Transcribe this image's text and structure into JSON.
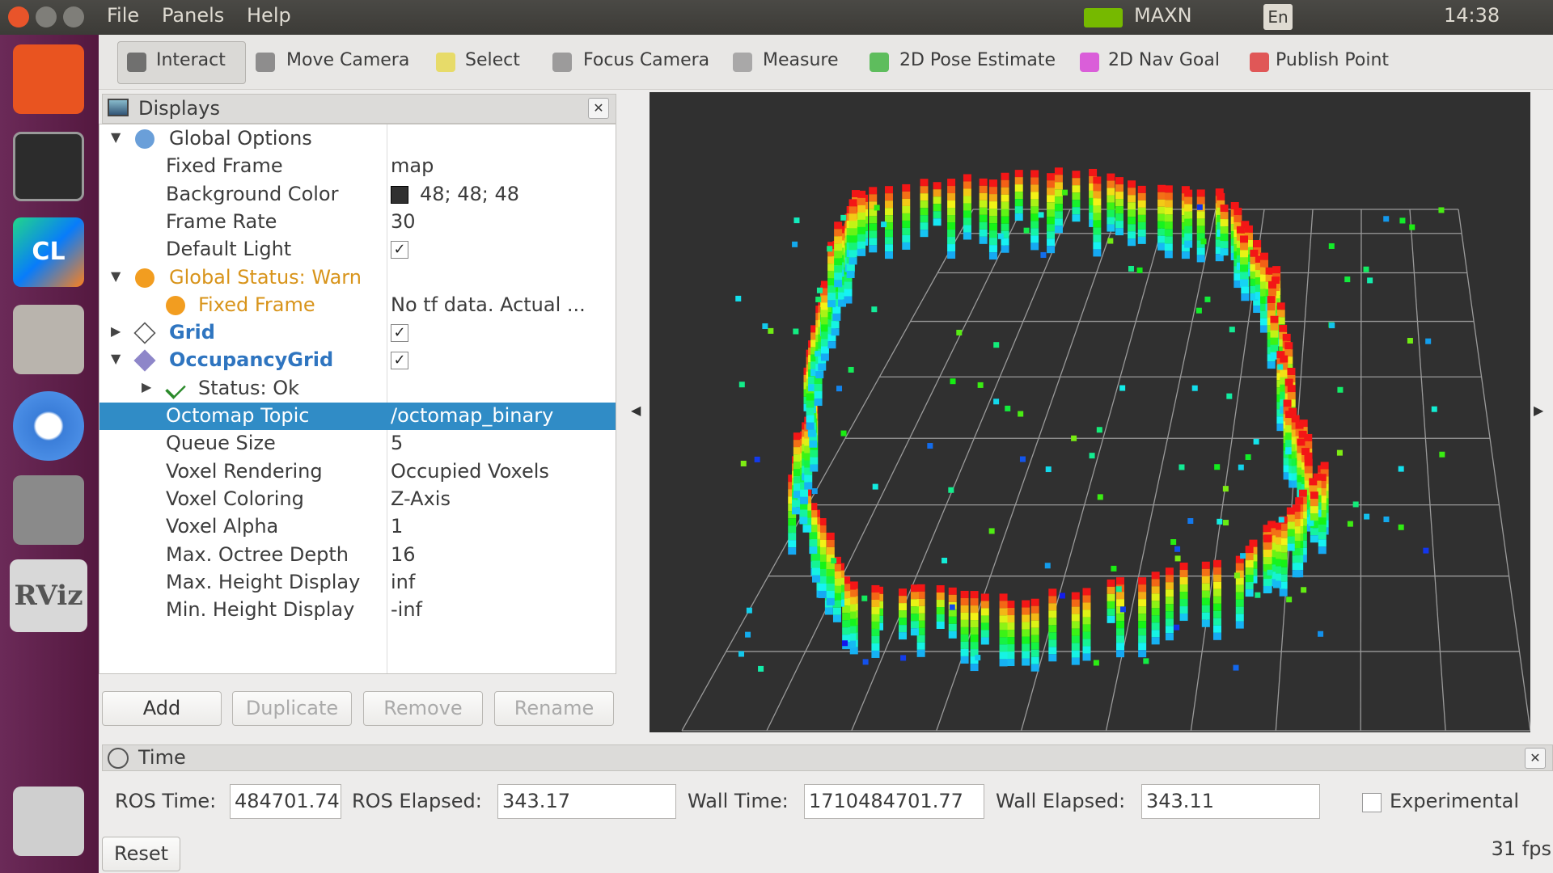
{
  "menubar": {
    "menus": [
      "File",
      "Panels",
      "Help"
    ],
    "power_mode": "MAXN",
    "keyboard": "En",
    "clock": "14:38"
  },
  "launcher": {
    "labels": [
      "CL",
      "RViz"
    ]
  },
  "toolbar": {
    "tools": [
      "Interact",
      "Move Camera",
      "Select",
      "Focus Camera",
      "Measure",
      "2D Pose Estimate",
      "2D Nav Goal",
      "Publish Point"
    ]
  },
  "displays": {
    "title": "Displays",
    "rows": [
      {
        "name": "Global Options",
        "level": 0,
        "icon": "gear",
        "expander": "open"
      },
      {
        "name": "Fixed Frame",
        "value": "map",
        "level": 1
      },
      {
        "name": "Background Color",
        "value": "48; 48; 48",
        "level": 1,
        "swatch": "#303030"
      },
      {
        "name": "Frame Rate",
        "value": "30",
        "level": 1
      },
      {
        "name": "Default Light",
        "level": 1,
        "checked": true
      },
      {
        "name": "Global Status: Warn",
        "level": 0,
        "icon": "warn",
        "expander": "open",
        "style": "warn"
      },
      {
        "name": "Fixed Frame",
        "value": "No tf data.  Actual ...",
        "level": 1,
        "icon": "warn",
        "style": "warn"
      },
      {
        "name": "Grid",
        "level": 0,
        "icon": "grid",
        "expander": "closed",
        "style": "link",
        "checked": true
      },
      {
        "name": "OccupancyGrid",
        "level": 0,
        "icon": "diamond",
        "expander": "open",
        "style": "link",
        "checked": true
      },
      {
        "name": "Status: Ok",
        "level": 1,
        "icon": "check",
        "expander": "closed"
      },
      {
        "name": "Octomap Topic",
        "value": "/octomap_binary",
        "level": 1,
        "selected": true
      },
      {
        "name": "Queue Size",
        "value": "5",
        "level": 1
      },
      {
        "name": "Voxel Rendering",
        "value": "Occupied Voxels",
        "level": 1
      },
      {
        "name": "Voxel Coloring",
        "value": "Z-Axis",
        "level": 1
      },
      {
        "name": "Voxel Alpha",
        "value": "1",
        "level": 1
      },
      {
        "name": "Max. Octree Depth",
        "value": "16",
        "level": 1
      },
      {
        "name": "Max. Height Display",
        "value": "inf",
        "level": 1
      },
      {
        "name": "Min. Height Display",
        "value": "-inf",
        "level": 1
      }
    ],
    "buttons": [
      {
        "label": "Add",
        "enabled": true
      },
      {
        "label": "Duplicate",
        "enabled": false
      },
      {
        "label": "Remove",
        "enabled": false
      },
      {
        "label": "Rename",
        "enabled": false
      }
    ]
  },
  "time": {
    "title": "Time",
    "fields": [
      {
        "label": "ROS Time:",
        "value": "484701.74"
      },
      {
        "label": "ROS Elapsed:",
        "value": "343.17"
      },
      {
        "label": "Wall Time:",
        "value": "1710484701.77"
      },
      {
        "label": "Wall Elapsed:",
        "value": "343.11"
      }
    ],
    "experimental": "Experimental",
    "reset": "Reset",
    "fps": "31 fps"
  }
}
